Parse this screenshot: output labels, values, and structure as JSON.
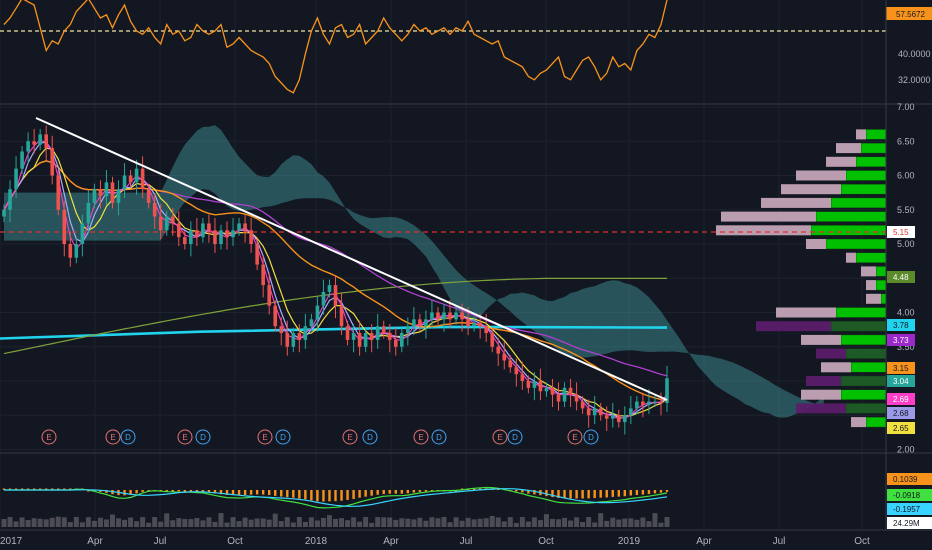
{
  "colors": {
    "background": "#131722",
    "grid": "#1e2230",
    "separator": "#363a45",
    "up": "#26a69a",
    "down": "#ef5350",
    "rsi": "#f7931a",
    "trendline": "#ffffff",
    "cloud": "#3e8f93",
    "ma_long": "#22d3ee",
    "ma_purple": "#b040d0",
    "ma_orange": "#f7931a",
    "ma_olive": "#7fa23a",
    "ma_yellow": "#f0e040",
    "ma_pink": "#ff3ec8",
    "ma_lavender": "#a9a9ff",
    "vp_up": "#00c000",
    "vp_down": "#c4a4b8",
    "vp_up_dim": "#1e5a26",
    "vp_down_dim": "#5a1e6a",
    "hline": "#e0302e",
    "macd_line": "#3fe03f",
    "signal_line": "#38d4ff",
    "hist": "#f7931a",
    "volume_bar": "#5a5a62"
  },
  "x_axis": {
    "labels": [
      "2017",
      "Apr",
      "Jul",
      "Oct",
      "2018",
      "Apr",
      "Jul",
      "Oct",
      "2019",
      "Apr",
      "Jul",
      "Oct"
    ]
  },
  "rsi_pane": {
    "ticks": [
      "40.0000",
      "32.0000"
    ],
    "last_value": "57.5672"
  },
  "price_axis": {
    "ticks": [
      "7.00",
      "6.50",
      "6.00",
      "5.50",
      "5.00",
      "4.50",
      "4.00",
      "3.50",
      "3.00",
      "2.50",
      "2.00"
    ]
  },
  "price_badges": [
    {
      "value": "5.15",
      "bg": "#ffffff",
      "fg": "#e0302e"
    },
    {
      "value": "4.48",
      "bg": "#5a8a2a",
      "fg": "#ffffff"
    },
    {
      "value": "3.78",
      "bg": "#22d3ee",
      "fg": "#131722"
    },
    {
      "value": "3.73",
      "bg": "#9b28c8",
      "fg": "#ffffff"
    },
    {
      "value": "3.15",
      "bg": "#f7931a",
      "fg": "#131722"
    },
    {
      "value": "3.04",
      "bg": "#26a69a",
      "fg": "#ffffff"
    },
    {
      "value": "2.69",
      "bg": "#ff3ec8",
      "fg": "#ffffff"
    },
    {
      "value": "2.68",
      "bg": "#9a9ae6",
      "fg": "#131722"
    },
    {
      "value": "2.65",
      "bg": "#f0e040",
      "fg": "#131722"
    }
  ],
  "earnings_markers": [
    "E",
    "E",
    "D",
    "E",
    "D",
    "E",
    "D",
    "E",
    "D",
    "E",
    "D",
    "E",
    "D",
    "E",
    "D"
  ],
  "macd_pane": {
    "values": [
      {
        "value": "0.1039",
        "bg": "#f7931a",
        "fg": "#131722"
      },
      {
        "value": "-0.0918",
        "bg": "#3fe03f",
        "fg": "#131722"
      },
      {
        "value": "-0.1957",
        "bg": "#38d4ff",
        "fg": "#131722"
      },
      {
        "value": "24.29M",
        "bg": "#ffffff",
        "fg": "#131722"
      }
    ]
  },
  "chart_data": {
    "type": "candlestick",
    "title": "",
    "timeframe": "weekly",
    "start": "2017-01",
    "price_ylim": [
      2.0,
      7.0
    ],
    "x_dates": [
      "2017-01-06",
      "2017-01-13",
      "2017-01-20",
      "2017-01-27",
      "2017-02-03",
      "2017-02-10",
      "2017-02-17",
      "2017-02-24",
      "2017-03-03",
      "2017-03-10",
      "2017-03-17",
      "2017-03-24",
      "2017-03-31",
      "2017-04-07",
      "2017-04-14",
      "2017-04-21",
      "2017-04-28",
      "2017-05-05",
      "2017-05-12",
      "2017-05-19",
      "2017-05-26",
      "2017-06-02",
      "2017-06-09",
      "2017-06-16",
      "2017-06-23",
      "2017-06-30",
      "2017-07-07",
      "2017-07-14",
      "2017-07-21",
      "2017-07-28",
      "2017-08-04",
      "2017-08-11",
      "2017-08-18",
      "2017-08-25",
      "2017-09-01",
      "2017-09-08",
      "2017-09-15",
      "2017-09-22",
      "2017-09-29",
      "2017-10-06",
      "2017-10-13",
      "2017-10-20",
      "2017-10-27",
      "2017-11-03",
      "2017-11-10",
      "2017-11-17",
      "2017-11-24",
      "2017-12-01",
      "2017-12-08",
      "2017-12-15",
      "2017-12-22",
      "2017-12-29",
      "2018-01-05",
      "2018-01-12",
      "2018-01-19",
      "2018-01-26",
      "2018-02-02",
      "2018-02-09",
      "2018-02-16",
      "2018-02-23",
      "2018-03-02",
      "2018-03-09",
      "2018-03-16",
      "2018-03-23",
      "2018-03-30",
      "2018-04-06",
      "2018-04-13",
      "2018-04-20",
      "2018-04-27",
      "2018-05-04",
      "2018-05-11",
      "2018-05-18",
      "2018-05-25",
      "2018-06-01",
      "2018-06-08",
      "2018-06-15",
      "2018-06-22",
      "2018-06-29",
      "2018-07-06",
      "2018-07-13",
      "2018-07-20",
      "2018-07-27",
      "2018-08-03",
      "2018-08-10",
      "2018-08-17",
      "2018-08-24",
      "2018-08-31",
      "2018-09-07",
      "2018-09-14",
      "2018-09-21",
      "2018-09-28",
      "2018-10-05",
      "2018-10-12",
      "2018-10-19",
      "2018-10-26",
      "2018-11-02",
      "2018-11-09",
      "2018-11-16",
      "2018-11-23",
      "2018-11-30",
      "2018-12-07",
      "2018-12-14",
      "2018-12-21",
      "2018-12-28",
      "2019-01-04",
      "2019-01-11",
      "2019-01-18",
      "2019-01-25",
      "2019-02-01",
      "2019-02-08",
      "2019-02-15"
    ],
    "close": [
      5.5,
      5.8,
      6.1,
      6.35,
      6.5,
      6.45,
      6.6,
      6.4,
      6.0,
      5.5,
      5.0,
      4.8,
      5.0,
      5.3,
      5.6,
      5.8,
      5.7,
      5.9,
      5.6,
      5.8,
      6.0,
      5.9,
      6.1,
      5.8,
      5.6,
      5.4,
      5.2,
      5.4,
      5.3,
      5.1,
      5.0,
      5.2,
      5.1,
      5.3,
      5.2,
      5.0,
      5.2,
      5.1,
      5.2,
      5.3,
      5.2,
      5.0,
      4.7,
      4.4,
      4.1,
      3.8,
      3.7,
      3.5,
      3.7,
      3.6,
      3.8,
      3.9,
      4.1,
      4.3,
      4.4,
      4.1,
      3.8,
      3.6,
      3.7,
      3.5,
      3.7,
      3.6,
      3.8,
      3.7,
      3.6,
      3.5,
      3.7,
      3.8,
      3.9,
      3.8,
      3.9,
      4.0,
      3.9,
      4.0,
      3.9,
      4.0,
      3.9,
      3.8,
      3.85,
      3.8,
      3.7,
      3.5,
      3.4,
      3.3,
      3.2,
      3.1,
      3.0,
      2.9,
      3.0,
      2.85,
      2.9,
      2.8,
      2.7,
      2.9,
      2.8,
      2.7,
      2.6,
      2.5,
      2.6,
      2.5,
      2.45,
      2.5,
      2.4,
      2.5,
      2.6,
      2.7,
      2.65,
      2.7,
      2.7,
      2.68,
      3.04
    ],
    "series_last": {
      "trendline": 2.7,
      "ma_long": 3.78,
      "ma_purple": 3.73,
      "ma_orange": 3.15,
      "ma_pink": 2.69,
      "ma_lavender": 2.68,
      "ma_yellow": 2.65,
      "ma_olive": 4.48,
      "hline": 5.15
    },
    "volume_profile": [
      {
        "price": 6.6,
        "up": 0.2,
        "down": 0.1
      },
      {
        "price": 6.4,
        "up": 0.25,
        "down": 0.25
      },
      {
        "price": 6.2,
        "up": 0.3,
        "down": 0.3
      },
      {
        "price": 6.0,
        "up": 0.4,
        "down": 0.5
      },
      {
        "price": 5.8,
        "up": 0.45,
        "down": 0.6
      },
      {
        "price": 5.6,
        "up": 0.55,
        "down": 0.7
      },
      {
        "price": 5.4,
        "up": 0.7,
        "down": 0.95
      },
      {
        "price": 5.2,
        "up": 0.75,
        "down": 0.95
      },
      {
        "price": 5.0,
        "up": 0.6,
        "down": 0.2
      },
      {
        "price": 4.8,
        "up": 0.3,
        "down": 0.1
      },
      {
        "price": 4.6,
        "up": 0.1,
        "down": 0.15
      },
      {
        "price": 4.4,
        "up": 0.1,
        "down": 0.1
      },
      {
        "price": 4.2,
        "up": 0.05,
        "down": 0.15
      },
      {
        "price": 4.0,
        "up": 0.5,
        "down": 0.6
      },
      {
        "price": 3.8,
        "up": 0.55,
        "down": 0.75
      },
      {
        "price": 3.6,
        "up": 0.45,
        "down": 0.4
      },
      {
        "price": 3.4,
        "up": 0.4,
        "down": 0.3
      },
      {
        "price": 3.2,
        "up": 0.35,
        "down": 0.3
      },
      {
        "price": 3.0,
        "up": 0.45,
        "down": 0.35
      },
      {
        "price": 2.8,
        "up": 0.45,
        "down": 0.4
      },
      {
        "price": 2.6,
        "up": 0.4,
        "down": 0.5
      },
      {
        "price": 2.4,
        "up": 0.2,
        "down": 0.15
      }
    ],
    "rsi": [
      50,
      52,
      55,
      58,
      57,
      56,
      49,
      42,
      45,
      44,
      48,
      50,
      54,
      56,
      58,
      55,
      52,
      53,
      49,
      53,
      56,
      51,
      48,
      47,
      49,
      46,
      44,
      50,
      47,
      48,
      45,
      46,
      50,
      48,
      47,
      48,
      50,
      43,
      44,
      46,
      44,
      42,
      41,
      40,
      38,
      34,
      32,
      30,
      29,
      33,
      41,
      48,
      52,
      47,
      44,
      49,
      50,
      46,
      47,
      50,
      44,
      46,
      48,
      52,
      49,
      47,
      45,
      47,
      50,
      48,
      49,
      47,
      48,
      49,
      47,
      49,
      48,
      51,
      47,
      46,
      45,
      44,
      45,
      40,
      39,
      38,
      37,
      34,
      33,
      35,
      36,
      38,
      40,
      34,
      33,
      36,
      39,
      40,
      37,
      33,
      35,
      40,
      37,
      38,
      36,
      42,
      44,
      47,
      46,
      50,
      57.5672
    ],
    "macd_last": 0.1039,
    "macd_signal_last": -0.0918,
    "macd_diff_last": -0.1957,
    "volume_last": "24.29M"
  }
}
